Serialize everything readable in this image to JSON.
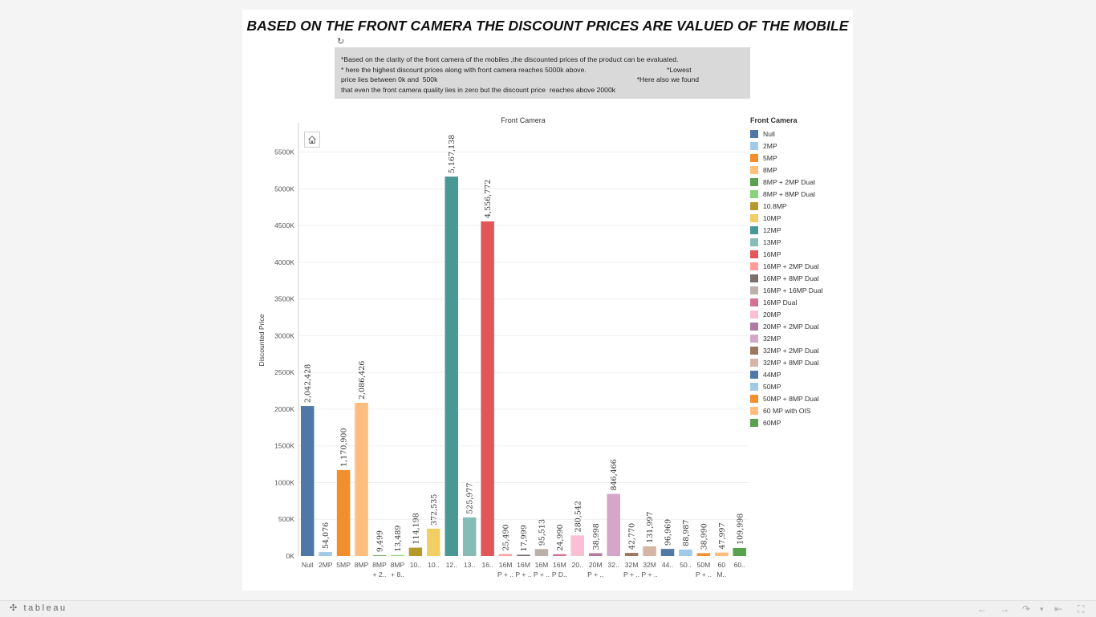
{
  "dashboard": {
    "title": "BASED ON THE FRONT CAMERA THE DISCOUNT PRICES ARE VALUED OF THE MOBILE",
    "description_lines": [
      "*Based on the clarity of the front camera of the mobiles ,the discounted prices of the product can be evaluated.",
      "* here the highest discount prices along with front camera reaches 5000k above.                                          *Lowest",
      "price lies between 0k and  500k                                                                                                        *Here also we found",
      "that even the front camera quality lies in zero but the discount price  reaches above 2000k"
    ]
  },
  "footer": {
    "logo_text": "tableau"
  },
  "chart_data": {
    "type": "bar",
    "title": "Front Camera",
    "xlabel": "",
    "ylabel": "Discounted Price",
    "ylim": [
      0,
      5900000
    ],
    "y_ticks": [
      0,
      500000,
      1000000,
      1500000,
      2000000,
      2500000,
      3000000,
      3500000,
      4000000,
      4500000,
      5000000,
      5500000
    ],
    "y_tick_labels": [
      "0K",
      "500K",
      "1000K",
      "1500K",
      "2000K",
      "2500K",
      "3000K",
      "3500K",
      "4000K",
      "4500K",
      "5000K",
      "5500K"
    ],
    "grid": true,
    "legend_title": "Front Camera",
    "legend_position": "right",
    "categories": [
      "Null",
      "2MP",
      "5MP",
      "8MP",
      "8MP + 2MP Dual",
      "8MP + 8MP Dual",
      "10.8MP",
      "10MP",
      "12MP",
      "13MP",
      "16MP",
      "16MP + 2MP Dual",
      "16MP + 8MP Dual",
      "16MP + 16MP Dual",
      "16MP Dual",
      "20MP",
      "20MP + 2MP Dual",
      "32MP",
      "32MP + 2MP Dual",
      "32MP + 8MP Dual",
      "44MP",
      "50MP",
      "50MP + 8MP Dual",
      "60 MP with OIS",
      "60MP"
    ],
    "tick_labels": [
      [
        "Null"
      ],
      [
        "2MP"
      ],
      [
        "5MP"
      ],
      [
        "8MP"
      ],
      [
        "8MP",
        "+ 2.."
      ],
      [
        "8MP",
        "+ 8.."
      ],
      [
        "10.."
      ],
      [
        "10.."
      ],
      [
        "12.."
      ],
      [
        "13.."
      ],
      [
        "16.."
      ],
      [
        "16M",
        "P + .."
      ],
      [
        "16M",
        "P + .."
      ],
      [
        "16M",
        "P + .."
      ],
      [
        "16M",
        "P D.."
      ],
      [
        "20.."
      ],
      [
        "20M",
        "P + .."
      ],
      [
        "32.."
      ],
      [
        "32M",
        "P + .."
      ],
      [
        "32M",
        "P + .."
      ],
      [
        "44.."
      ],
      [
        "50.."
      ],
      [
        "50M",
        "P + .."
      ],
      [
        "60",
        "M.."
      ],
      [
        "60.."
      ]
    ],
    "values": [
      2042428,
      54076,
      1170900,
      2086426,
      9499,
      13489,
      114198,
      372535,
      5167138,
      525977,
      4556772,
      25490,
      17999,
      95513,
      24990,
      280542,
      38998,
      846466,
      42770,
      131997,
      96969,
      88987,
      38990,
      47997,
      109998
    ],
    "value_labels": [
      "2,042,428",
      "54,076",
      "1,170,900",
      "2,086,426",
      "9,499",
      "13,489",
      "114,198",
      "372,535",
      "5,167,138",
      "525,977",
      "4,556,772",
      "25,490",
      "17,999",
      "95,513",
      "24,990",
      "280,542",
      "38,998",
      "846,466",
      "42,770",
      "131,997",
      "96,969",
      "88,987",
      "38,990",
      "47,997",
      "109,998"
    ],
    "colors": [
      "#4e79a7",
      "#a0cbe8",
      "#f28e2b",
      "#ffbe7d",
      "#59a14f",
      "#8cd17d",
      "#b6992d",
      "#f1ce63",
      "#499894",
      "#86bcb6",
      "#e15759",
      "#ff9d9a",
      "#79706e",
      "#bab0ac",
      "#d37295",
      "#fabfd2",
      "#b07aa1",
      "#d4a6c8",
      "#9d7660",
      "#d7b5a6",
      "#4e79a7",
      "#a0cbe8",
      "#f28e2b",
      "#ffbe7d",
      "#59a14f"
    ]
  }
}
